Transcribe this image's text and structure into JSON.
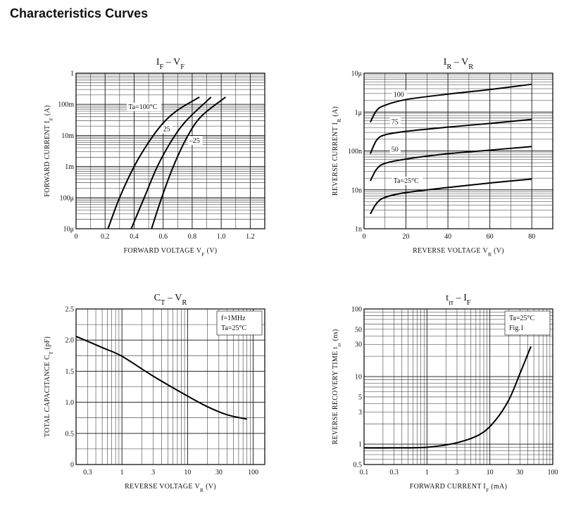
{
  "header": {
    "title": "Characteristics Curves"
  },
  "chart_data": [
    {
      "type": "line",
      "title_main": "I",
      "title_sub": "F",
      "title_sep": " – ",
      "title_main2": "V",
      "title_sub2": "F",
      "xlabel_text": "FORWARD VOLTAGE",
      "xlabel_sym": "V",
      "xlabel_sub": "F",
      "xlabel_unit": "(V)",
      "ylabel_text": "FORWARD CURRENT",
      "ylabel_sym": "I",
      "ylabel_sub": "F",
      "ylabel_unit": "(A)",
      "x_scale": "linear",
      "y_scale": "log",
      "xlim": [
        0,
        1.3
      ],
      "ylim": [
        1e-05,
        1
      ],
      "x_ticks": [
        {
          "v": 0,
          "label": "0"
        },
        {
          "v": 0.2,
          "label": "0.2"
        },
        {
          "v": 0.4,
          "label": "0.4"
        },
        {
          "v": 0.6,
          "label": "0.6"
        },
        {
          "v": 0.8,
          "label": "0.8"
        },
        {
          "v": 1.0,
          "label": "1.0"
        },
        {
          "v": 1.2,
          "label": "1.2"
        }
      ],
      "y_ticks": [
        {
          "v": 1,
          "label": "1"
        },
        {
          "v": 0.1,
          "label": "100m"
        },
        {
          "v": 0.01,
          "label": "10m"
        },
        {
          "v": 0.001,
          "label": "1m"
        },
        {
          "v": 0.0001,
          "label": "100μ"
        },
        {
          "v": 1e-05,
          "label": "10μ"
        }
      ],
      "series": [
        {
          "label_text": "Ta=100°C",
          "label_pos": [
            0.36,
            0.07
          ],
          "points": [
            [
              0.22,
              1e-05
            ],
            [
              0.3,
              0.0001
            ],
            [
              0.4,
              0.001
            ],
            [
              0.5,
              0.006
            ],
            [
              0.6,
              0.025
            ],
            [
              0.7,
              0.065
            ],
            [
              0.85,
              0.17
            ]
          ]
        },
        {
          "label_text": "25",
          "label_pos": [
            0.6,
            0.0135
          ],
          "points": [
            [
              0.38,
              1e-05
            ],
            [
              0.47,
              0.0001
            ],
            [
              0.56,
              0.001
            ],
            [
              0.66,
              0.007
            ],
            [
              0.76,
              0.03
            ],
            [
              0.93,
              0.17
            ]
          ]
        },
        {
          "label_text": "–25",
          "label_pos": [
            0.78,
            0.0058
          ],
          "points": [
            [
              0.52,
              1e-05
            ],
            [
              0.59,
              0.0001
            ],
            [
              0.67,
              0.001
            ],
            [
              0.76,
              0.008
            ],
            [
              0.86,
              0.04
            ],
            [
              1.03,
              0.17
            ]
          ]
        }
      ]
    },
    {
      "type": "line",
      "title_main": "I",
      "title_sub": "R",
      "title_sep": " – ",
      "title_main2": "V",
      "title_sub2": "R",
      "xlabel_text": "REVERSE VOLTAGE",
      "xlabel_sym": "V",
      "xlabel_sub": "R",
      "xlabel_unit": "(V)",
      "ylabel_text": "REVERSE CURRENT",
      "ylabel_sym": "I",
      "ylabel_sub": "R",
      "ylabel_unit": "(A)",
      "x_scale": "linear",
      "y_scale": "log",
      "xlim": [
        0,
        90
      ],
      "ylim": [
        1e-09,
        1e-05
      ],
      "x_ticks": [
        {
          "v": 0,
          "label": "0"
        },
        {
          "v": 20,
          "label": "20"
        },
        {
          "v": 40,
          "label": "40"
        },
        {
          "v": 60,
          "label": "60"
        },
        {
          "v": 80,
          "label": "80"
        }
      ],
      "y_ticks": [
        {
          "v": 1e-05,
          "label": "10μ"
        },
        {
          "v": 1e-06,
          "label": "1μ"
        },
        {
          "v": 1e-07,
          "label": "100n"
        },
        {
          "v": 1e-08,
          "label": "10n"
        },
        {
          "v": 1e-09,
          "label": "1n"
        }
      ],
      "series": [
        {
          "label_text": "100",
          "label_pos": [
            14,
            2.5e-06
          ],
          "points": [
            [
              3,
              5.5e-07
            ],
            [
              6,
              1.1e-06
            ],
            [
              10,
              1.5e-06
            ],
            [
              20,
              2.1e-06
            ],
            [
              40,
              2.9e-06
            ],
            [
              60,
              3.8e-06
            ],
            [
              80,
              5.2e-06
            ]
          ]
        },
        {
          "label_text": "75",
          "label_pos": [
            13,
            4.9e-07
          ],
          "points": [
            [
              3,
              8.5e-08
            ],
            [
              6,
              1.9e-07
            ],
            [
              10,
              2.6e-07
            ],
            [
              20,
              3.2e-07
            ],
            [
              40,
              4.1e-07
            ],
            [
              60,
              5.1e-07
            ],
            [
              80,
              6.5e-07
            ]
          ]
        },
        {
          "label_text": "50",
          "label_pos": [
            13,
            9.5e-08
          ],
          "points": [
            [
              3,
              1.7e-08
            ],
            [
              6,
              3.4e-08
            ],
            [
              10,
              4.8e-08
            ],
            [
              20,
              6.2e-08
            ],
            [
              40,
              8.5e-08
            ],
            [
              60,
              1.05e-07
            ],
            [
              80,
              1.3e-07
            ]
          ]
        },
        {
          "label_text": "Ta=25°C",
          "label_pos": [
            14,
            1.5e-08
          ],
          "points": [
            [
              3,
              2.4e-09
            ],
            [
              6,
              4.5e-09
            ],
            [
              10,
              6.4e-09
            ],
            [
              20,
              8.5e-09
            ],
            [
              40,
              1.15e-08
            ],
            [
              60,
              1.5e-08
            ],
            [
              80,
              1.9e-08
            ]
          ]
        }
      ]
    },
    {
      "type": "line",
      "title_main": "C",
      "title_sub": "T",
      "title_sep": " – ",
      "title_main2": "V",
      "title_sub2": "R",
      "xlabel_text": "REVERSE VOLTAGE",
      "xlabel_sym": "V",
      "xlabel_sub": "R",
      "xlabel_unit": "(V)",
      "ylabel_text": "TOTAL CAPACITANCE",
      "ylabel_sym": "C",
      "ylabel_sub": "T",
      "ylabel_unit": "(pF)",
      "x_scale": "log",
      "y_scale": "linear",
      "xlim": [
        0.2,
        150
      ],
      "ylim": [
        0,
        2.5
      ],
      "x_ticks": [
        {
          "v": 0.3,
          "label": "0.3"
        },
        {
          "v": 1,
          "label": "1"
        },
        {
          "v": 3,
          "label": "3"
        },
        {
          "v": 10,
          "label": "10"
        },
        {
          "v": 30,
          "label": "30"
        },
        {
          "v": 100,
          "label": "100"
        }
      ],
      "y_ticks": [
        {
          "v": 2.5,
          "label": "2.5"
        },
        {
          "v": 2.0,
          "label": "2.0"
        },
        {
          "v": 1.5,
          "label": "1.5"
        },
        {
          "v": 1.0,
          "label": "1.0"
        },
        {
          "v": 0.5,
          "label": "0.5"
        },
        {
          "v": 0,
          "label": "0"
        }
      ],
      "legend_lines": [
        "f=1MHz",
        "Ta=25°C"
      ],
      "series": [
        {
          "label_text": "",
          "points": [
            [
              0.2,
              2.06
            ],
            [
              0.5,
              1.88
            ],
            [
              1,
              1.74
            ],
            [
              3,
              1.42
            ],
            [
              10,
              1.1
            ],
            [
              20,
              0.93
            ],
            [
              40,
              0.8
            ],
            [
              80,
              0.73
            ]
          ]
        }
      ]
    },
    {
      "type": "line",
      "title_main": "t",
      "title_sub": "rr",
      "title_sep": " – ",
      "title_main2": "I",
      "title_sub2": "F",
      "xlabel_text": "FORWARD CURRENT",
      "xlabel_sym": "I",
      "xlabel_sub": "F",
      "xlabel_unit": "(mA)",
      "ylabel_text": "REVERSE RECOVERY TIME",
      "ylabel_sym": "t",
      "ylabel_sub": "rr",
      "ylabel_unit": "(ns)",
      "x_scale": "log",
      "y_scale": "log",
      "xlim": [
        0.1,
        100
      ],
      "ylim": [
        0.5,
        100
      ],
      "x_ticks": [
        {
          "v": 0.1,
          "label": "0.1"
        },
        {
          "v": 0.3,
          "label": "0.3"
        },
        {
          "v": 1,
          "label": "1"
        },
        {
          "v": 3,
          "label": "3"
        },
        {
          "v": 10,
          "label": "10"
        },
        {
          "v": 30,
          "label": "30"
        },
        {
          "v": 100,
          "label": "100"
        }
      ],
      "y_ticks": [
        {
          "v": 100,
          "label": "100"
        },
        {
          "v": 50,
          "label": "50"
        },
        {
          "v": 30,
          "label": "30"
        },
        {
          "v": 10,
          "label": "10"
        },
        {
          "v": 5,
          "label": "5"
        },
        {
          "v": 3,
          "label": "3"
        },
        {
          "v": 1,
          "label": "1"
        },
        {
          "v": 0.5,
          "label": "0.5"
        }
      ],
      "legend_lines": [
        "Ta=25°C",
        "Fig.1"
      ],
      "series": [
        {
          "label_text": "",
          "points": [
            [
              0.1,
              0.88
            ],
            [
              0.3,
              0.88
            ],
            [
              1,
              0.9
            ],
            [
              3,
              1.05
            ],
            [
              7,
              1.4
            ],
            [
              12,
              2.2
            ],
            [
              20,
              4.5
            ],
            [
              30,
              11
            ],
            [
              45,
              28
            ]
          ]
        }
      ]
    }
  ]
}
